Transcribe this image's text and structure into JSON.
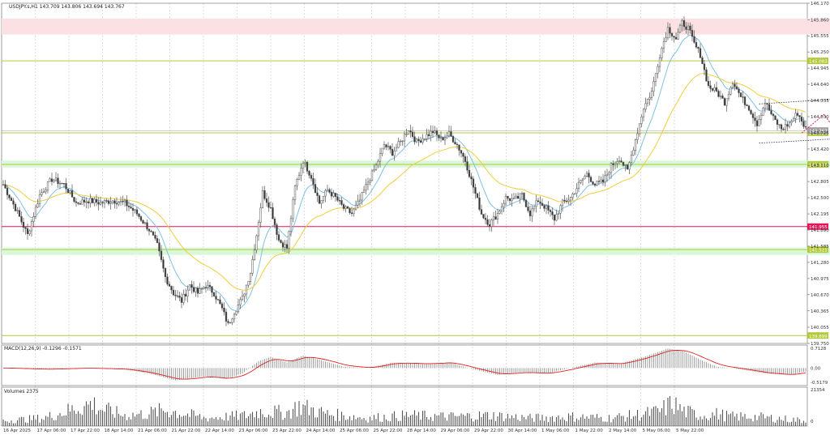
{
  "header": {
    "symbol_line": "USDJPY.s,H1  143.709 143.806 143.694 143.767"
  },
  "chart_data": {
    "type": "candlestick",
    "symbol": "USDJPY.s",
    "timeframe": "H1",
    "ohlc_header": {
      "open": 143.709,
      "high": 143.806,
      "low": 143.694,
      "close": 143.767
    },
    "price_axis": {
      "min": 139.75,
      "max": 146.17,
      "ticks": [
        "146.170",
        "145.860",
        "145.555",
        "145.250",
        "144.945",
        "144.640",
        "144.335",
        "144.030",
        "143.725",
        "143.420",
        "143.110",
        "142.805",
        "142.500",
        "142.195",
        "141.890",
        "141.585",
        "141.280",
        "140.975",
        "140.670",
        "140.365",
        "140.055",
        "139.750"
      ]
    },
    "time_labels": [
      "16 Apr 2025",
      "17 Apr 06:00",
      "17 Apr 22:00",
      "18 Apr 14:00",
      "21 Apr 06:00",
      "21 Apr 22:00",
      "22 Apr 14:00",
      "23 Apr 06:00",
      "23 Apr 22:00",
      "24 Apr 14:00",
      "25 Apr 06:00",
      "25 Apr 22:00",
      "28 Apr 14:00",
      "29 Apr 06:00",
      "29 Apr 22:00",
      "30 Apr 14:00",
      "1 May 06:00",
      "1 May 22:00",
      "2 May 14:00",
      "5 May 06:00",
      "5 May 22:00"
    ],
    "candle_anchors": [
      [
        0,
        142.75
      ],
      [
        6,
        142.3
      ],
      [
        12,
        141.8
      ],
      [
        18,
        142.55
      ],
      [
        24,
        142.85
      ],
      [
        30,
        142.75
      ],
      [
        36,
        142.4
      ],
      [
        42,
        142.45
      ],
      [
        48,
        142.4
      ],
      [
        54,
        142.45
      ],
      [
        60,
        142.4
      ],
      [
        66,
        142.2
      ],
      [
        72,
        141.9
      ],
      [
        76,
        141.6
      ],
      [
        80,
        141.0
      ],
      [
        84,
        140.7
      ],
      [
        88,
        140.55
      ],
      [
        92,
        140.85
      ],
      [
        96,
        140.7
      ],
      [
        100,
        140.85
      ],
      [
        104,
        140.7
      ],
      [
        108,
        140.4
      ],
      [
        111,
        140.1
      ],
      [
        114,
        140.35
      ],
      [
        118,
        140.6
      ],
      [
        122,
        141.1
      ],
      [
        125,
        141.8
      ],
      [
        128,
        142.6
      ],
      [
        132,
        142.3
      ],
      [
        136,
        141.7
      ],
      [
        140,
        141.55
      ],
      [
        144,
        142.7
      ],
      [
        148,
        143.2
      ],
      [
        152,
        142.9
      ],
      [
        156,
        142.4
      ],
      [
        160,
        142.65
      ],
      [
        164,
        142.5
      ],
      [
        168,
        142.3
      ],
      [
        172,
        142.2
      ],
      [
        176,
        142.45
      ],
      [
        180,
        142.8
      ],
      [
        184,
        143.1
      ],
      [
        188,
        143.5
      ],
      [
        192,
        143.35
      ],
      [
        196,
        143.55
      ],
      [
        200,
        143.8
      ],
      [
        204,
        143.55
      ],
      [
        208,
        143.65
      ],
      [
        212,
        143.75
      ],
      [
        216,
        143.6
      ],
      [
        220,
        143.7
      ],
      [
        224,
        143.5
      ],
      [
        228,
        143.2
      ],
      [
        232,
        142.7
      ],
      [
        236,
        142.2
      ],
      [
        240,
        142.0
      ],
      [
        244,
        142.2
      ],
      [
        248,
        142.5
      ],
      [
        252,
        142.45
      ],
      [
        256,
        142.55
      ],
      [
        260,
        142.2
      ],
      [
        264,
        142.45
      ],
      [
        268,
        142.3
      ],
      [
        272,
        142.1
      ],
      [
        276,
        142.4
      ],
      [
        280,
        142.5
      ],
      [
        284,
        142.75
      ],
      [
        288,
        142.95
      ],
      [
        292,
        142.75
      ],
      [
        296,
        142.8
      ],
      [
        300,
        143.1
      ],
      [
        304,
        143.25
      ],
      [
        308,
        143.0
      ],
      [
        312,
        143.6
      ],
      [
        316,
        144.2
      ],
      [
        320,
        144.5
      ],
      [
        324,
        145.2
      ],
      [
        328,
        145.7
      ],
      [
        332,
        145.5
      ],
      [
        335,
        145.8
      ],
      [
        338,
        145.7
      ],
      [
        341,
        145.4
      ],
      [
        344,
        145.2
      ],
      [
        348,
        144.6
      ],
      [
        352,
        144.5
      ],
      [
        356,
        144.3
      ],
      [
        360,
        144.7
      ],
      [
        364,
        144.4
      ],
      [
        368,
        144.2
      ],
      [
        372,
        143.9
      ],
      [
        376,
        144.3
      ],
      [
        380,
        144.0
      ],
      [
        384,
        143.8
      ],
      [
        388,
        143.9
      ],
      [
        392,
        144.1
      ],
      [
        396,
        143.8
      ]
    ],
    "ema_fast_color": "#7ec0e6",
    "ema_slow_color": "#f2cd3a",
    "horizontal_levels": [
      {
        "price": 145.083,
        "label": "145.083",
        "color": "#b4c93a"
      },
      {
        "price": 143.724,
        "label": "143.724",
        "color": "#b4c93a"
      },
      {
        "price": 143.128,
        "label": "143.128",
        "color": "#b4c93a"
      },
      {
        "price": 141.955,
        "label": "141.955",
        "color": "#e0185a"
      },
      {
        "price": 141.521,
        "label": "141.521",
        "color": "#b4c93a"
      },
      {
        "price": 139.899,
        "label": "139.899",
        "color": "#b4c93a"
      }
    ],
    "bid_price_label": "143.767",
    "zones": [
      {
        "low": 145.58,
        "high": 145.88,
        "color": "#fbe1e4"
      },
      {
        "low": 143.07,
        "high": 143.2,
        "color": "#d9f7d9"
      },
      {
        "low": 141.42,
        "high": 141.56,
        "color": "#d9f7d9"
      }
    ],
    "channel": {
      "upper": [
        [
          373,
          144.27
        ],
        [
          419,
          144.38
        ]
      ],
      "lower": [
        [
          373,
          143.53
        ],
        [
          419,
          143.63
        ]
      ]
    },
    "projection": [
      [
        394,
        143.72
      ],
      [
        405,
        144.07
      ],
      [
        410,
        143.82
      ],
      [
        416,
        144.13
      ],
      [
        420,
        143.86
      ]
    ],
    "macd": {
      "label": "MACD(12,26,9) -0.1296 -0.1571",
      "ticks": [
        "0.7128",
        "0.00",
        "-0.5179"
      ],
      "max": 0.7128,
      "min": -0.5179,
      "anchors": [
        [
          0,
          0.0
        ],
        [
          20,
          -0.05
        ],
        [
          40,
          0.0
        ],
        [
          60,
          -0.05
        ],
        [
          72,
          -0.2
        ],
        [
          85,
          -0.45
        ],
        [
          100,
          -0.3
        ],
        [
          110,
          -0.4
        ],
        [
          118,
          -0.2
        ],
        [
          126,
          0.25
        ],
        [
          132,
          0.4
        ],
        [
          140,
          0.2
        ],
        [
          148,
          0.45
        ],
        [
          156,
          0.3
        ],
        [
          168,
          0.05
        ],
        [
          180,
          0.0
        ],
        [
          192,
          0.2
        ],
        [
          208,
          0.15
        ],
        [
          220,
          0.2
        ],
        [
          232,
          -0.05
        ],
        [
          244,
          -0.25
        ],
        [
          256,
          -0.15
        ],
        [
          268,
          -0.2
        ],
        [
          280,
          0.0
        ],
        [
          292,
          0.2
        ],
        [
          304,
          0.15
        ],
        [
          316,
          0.4
        ],
        [
          328,
          0.7
        ],
        [
          336,
          0.6
        ],
        [
          344,
          0.3
        ],
        [
          352,
          0.05
        ],
        [
          364,
          -0.05
        ],
        [
          376,
          -0.2
        ],
        [
          388,
          -0.25
        ],
        [
          396,
          -0.13
        ]
      ]
    },
    "volume": {
      "label": "Volumes 2375",
      "ticks": [
        "21354",
        "0"
      ],
      "max": 21354,
      "anchors": [
        [
          0,
          4000
        ],
        [
          20,
          6000
        ],
        [
          44,
          17000
        ],
        [
          48,
          13000
        ],
        [
          60,
          8000
        ],
        [
          70,
          9000
        ],
        [
          80,
          12000
        ],
        [
          100,
          6000
        ],
        [
          120,
          8000
        ],
        [
          126,
          11000
        ],
        [
          140,
          10000
        ],
        [
          146,
          15000
        ],
        [
          160,
          9000
        ],
        [
          180,
          6000
        ],
        [
          200,
          8000
        ],
        [
          220,
          7000
        ],
        [
          240,
          8000
        ],
        [
          260,
          6000
        ],
        [
          280,
          7000
        ],
        [
          300,
          6000
        ],
        [
          316,
          9000
        ],
        [
          324,
          11000
        ],
        [
          330,
          17000
        ],
        [
          336,
          11000
        ],
        [
          344,
          8000
        ],
        [
          352,
          9000
        ],
        [
          360,
          7000
        ],
        [
          370,
          7000
        ],
        [
          380,
          6000
        ],
        [
          396,
          4000
        ]
      ]
    }
  }
}
